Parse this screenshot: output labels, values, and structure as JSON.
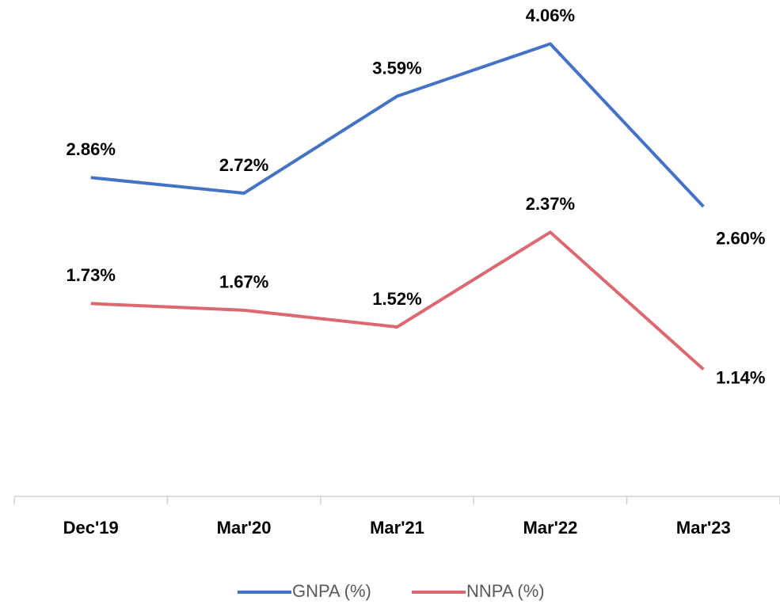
{
  "chart_data": {
    "type": "line",
    "categories": [
      "Dec'19",
      "Mar'20",
      "Mar'21",
      "Mar'22",
      "Mar'23"
    ],
    "series": [
      {
        "name": "GNPA (%)",
        "color": "#4472c4",
        "values": [
          2.86,
          2.72,
          3.59,
          4.06,
          2.6
        ],
        "value_labels": [
          "2.86%",
          "2.72%",
          "3.59%",
          "4.06%",
          "2.60%"
        ]
      },
      {
        "name": "NNPA (%)",
        "color": "#dc6870",
        "values": [
          1.73,
          1.67,
          1.52,
          2.37,
          1.14
        ],
        "value_labels": [
          "1.73%",
          "1.67%",
          "1.52%",
          "2.37%",
          "1.14%"
        ]
      }
    ],
    "ylim": [
      0,
      4.5
    ],
    "legend": "bottom"
  }
}
